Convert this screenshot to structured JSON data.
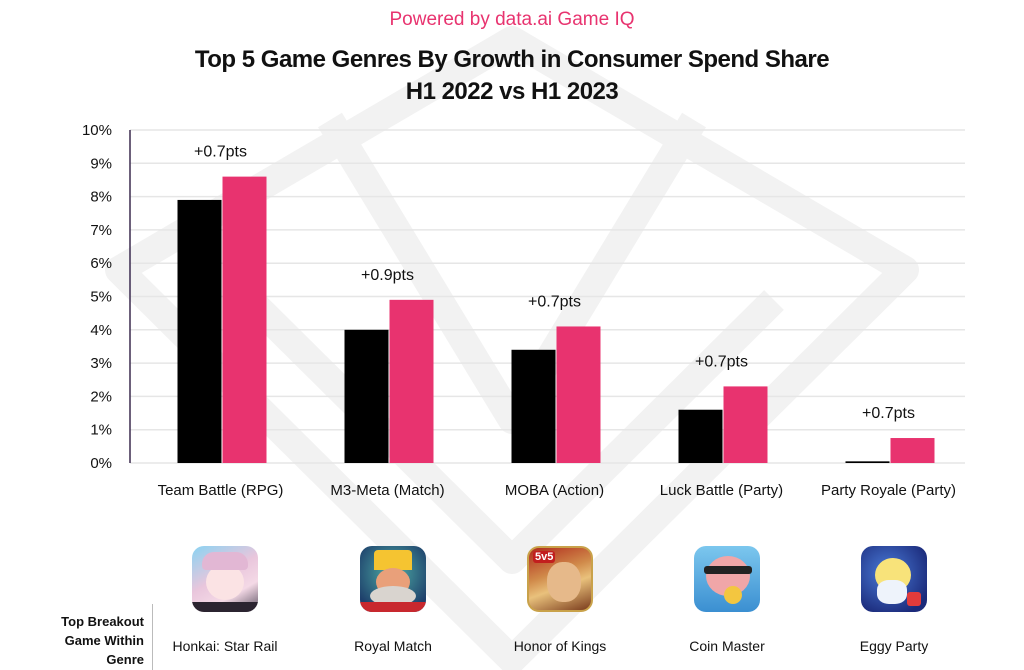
{
  "header": {
    "powered_by": "Powered by data.ai Game IQ",
    "title_line1": "Top 5 Game Genres By Growth in Consumer Spend Share",
    "title_line2": "H1 2022 vs H1 2023"
  },
  "colors": {
    "h1_2022": "#000000",
    "h1_2023": "#e8336f",
    "accent": "#e8336f",
    "grid": "#e6e6e6",
    "axis": "#3b2b4f"
  },
  "chart_data": {
    "type": "bar",
    "title": "Top 5 Game Genres By Growth in Consumer Spend Share H1 2022 vs H1 2023",
    "xlabel": "",
    "ylabel": "",
    "ylim": [
      0,
      10
    ],
    "y_unit": "%",
    "y_ticks": [
      "0%",
      "1%",
      "2%",
      "3%",
      "4%",
      "5%",
      "6%",
      "7%",
      "8%",
      "9%",
      "10%"
    ],
    "grid": true,
    "legend": "none",
    "categories": [
      "Team Battle (RPG)",
      "M3-Meta (Match)",
      "MOBA (Action)",
      "Luck Battle (Party)",
      "Party Royale (Party)"
    ],
    "series": [
      {
        "name": "H1 2022",
        "values": [
          7.9,
          4.0,
          3.4,
          1.6,
          0.05
        ]
      },
      {
        "name": "H1 2023",
        "values": [
          8.6,
          4.9,
          4.1,
          2.3,
          0.75
        ]
      }
    ],
    "annotations": [
      "+0.7pts",
      "+0.9pts",
      "+0.7pts",
      "+0.7pts",
      "+0.7pts"
    ]
  },
  "breakout": {
    "label_lines": [
      "Top Breakout",
      "Game Within",
      "Genre"
    ],
    "games": [
      {
        "name": "Honkai: Star Rail",
        "icon": "honkai-star-rail-app-icon"
      },
      {
        "name": "Royal Match",
        "icon": "royal-match-app-icon"
      },
      {
        "name": "Honor of Kings",
        "icon": "honor-of-kings-app-icon"
      },
      {
        "name": "Coin Master",
        "icon": "coin-master-app-icon"
      },
      {
        "name": "Eggy Party",
        "icon": "eggy-party-app-icon"
      }
    ]
  }
}
